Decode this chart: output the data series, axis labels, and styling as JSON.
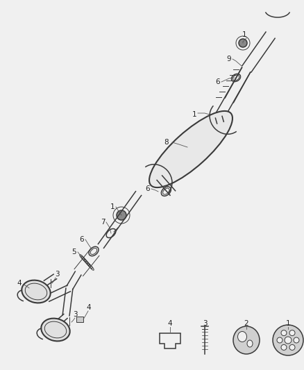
{
  "bg_color": "#f0f0f0",
  "line_color": "#3a3a3a",
  "label_color": "#222222",
  "lw_thin": 0.7,
  "lw_med": 1.1,
  "lw_thick": 1.5,
  "figw": 4.38,
  "figh": 5.33,
  "dpi": 100
}
